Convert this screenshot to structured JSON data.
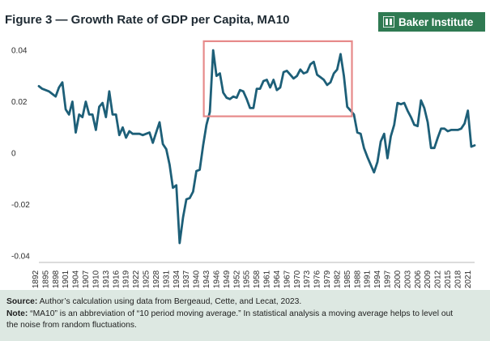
{
  "header": {
    "title": "Figure 3 — Growth Rate of GDP per Capita, MA10",
    "logo_text": "Baker Institute",
    "logo_color": "#2f7a52"
  },
  "chart_data": {
    "type": "line",
    "title": "Figure 3 — Growth Rate of GDP per Capita, MA10",
    "xlabel": "",
    "ylabel": "",
    "ylim": [
      -0.04,
      0.04
    ],
    "xlim": [
      1892,
      2022
    ],
    "grid": false,
    "line_color": "#1d5f78",
    "highlight_color": "#e78a8a",
    "y_ticks": [
      {
        "value": 0.04,
        "label": "0.04"
      },
      {
        "value": 0.02,
        "label": "0.02"
      },
      {
        "value": 0,
        "label": "0"
      },
      {
        "value": -0.02,
        "label": "-0.02"
      },
      {
        "value": -0.04,
        "label": "-0.04"
      }
    ],
    "x_ticks": [
      "1892",
      "1895",
      "1898",
      "1901",
      "1904",
      "1907",
      "1910",
      "1913",
      "1916",
      "1919",
      "1922",
      "1925",
      "1928",
      "1931",
      "1934",
      "1937",
      "1940",
      "1943",
      "1946",
      "1949",
      "1952",
      "1955",
      "1958",
      "1961",
      "1964",
      "1967",
      "1970",
      "1973",
      "1976",
      "1979",
      "1982",
      "1985",
      "1988",
      "1991",
      "1994",
      "1997",
      "2000",
      "2003",
      "2006",
      "2009",
      "2012",
      "2015",
      "2018",
      "2021"
    ],
    "highlight_box": {
      "x_start": 1941.2,
      "x_end": 1985.4,
      "y_start": 0.0435,
      "y_end": 0.0143
    },
    "series": [
      {
        "name": "Growth Rate of GDP per Capita, MA10",
        "x": [
          1892,
          1893,
          1894,
          1895,
          1896,
          1897,
          1898,
          1899,
          1900,
          1901,
          1902,
          1903,
          1904,
          1905,
          1906,
          1907,
          1908,
          1909,
          1910,
          1911,
          1912,
          1913,
          1914,
          1915,
          1916,
          1917,
          1918,
          1919,
          1920,
          1921,
          1922,
          1923,
          1924,
          1925,
          1926,
          1927,
          1928,
          1929,
          1930,
          1931,
          1932,
          1933,
          1934,
          1935,
          1936,
          1937,
          1938,
          1939,
          1940,
          1941,
          1942,
          1943,
          1944,
          1945,
          1946,
          1947,
          1948,
          1949,
          1950,
          1951,
          1952,
          1953,
          1954,
          1955,
          1956,
          1957,
          1958,
          1959,
          1960,
          1961,
          1962,
          1963,
          1964,
          1965,
          1966,
          1967,
          1968,
          1969,
          1970,
          1971,
          1972,
          1973,
          1974,
          1975,
          1976,
          1977,
          1978,
          1979,
          1980,
          1981,
          1982,
          1983,
          1984,
          1985,
          1986,
          1987,
          1988,
          1989,
          1990,
          1991,
          1992,
          1993,
          1994,
          1995,
          1996,
          1997,
          1998,
          1999,
          2000,
          2001,
          2002,
          2003,
          2004,
          2005,
          2006,
          2007,
          2008,
          2009,
          2010,
          2011,
          2012,
          2013,
          2014,
          2015,
          2016,
          2017,
          2018,
          2019,
          2020,
          2021,
          2022
        ],
        "values": [
          0.026,
          0.025,
          0.0245,
          0.024,
          0.023,
          0.022,
          0.0255,
          0.0275,
          0.017,
          0.015,
          0.02,
          0.008,
          0.015,
          0.014,
          0.02,
          0.015,
          0.015,
          0.009,
          0.018,
          0.0195,
          0.014,
          0.024,
          0.015,
          0.015,
          0.007,
          0.01,
          0.006,
          0.0085,
          0.0075,
          0.0075,
          0.0075,
          0.007,
          0.0075,
          0.008,
          0.004,
          0.008,
          0.012,
          0.0035,
          0.0015,
          -0.0045,
          -0.0135,
          -0.0125,
          -0.035,
          -0.025,
          -0.018,
          -0.0175,
          -0.015,
          -0.007,
          -0.0065,
          0.003,
          0.011,
          0.016,
          0.04,
          0.03,
          0.031,
          0.0235,
          0.0215,
          0.021,
          0.022,
          0.0215,
          0.0245,
          0.024,
          0.021,
          0.0175,
          0.0175,
          0.025,
          0.025,
          0.028,
          0.0285,
          0.0255,
          0.0285,
          0.0245,
          0.0255,
          0.0315,
          0.032,
          0.0305,
          0.029,
          0.03,
          0.0325,
          0.031,
          0.0315,
          0.0345,
          0.0355,
          0.0305,
          0.0295,
          0.0285,
          0.0265,
          0.0275,
          0.031,
          0.0325,
          0.0385,
          0.03,
          0.018,
          0.0165,
          0.015,
          0.008,
          0.0075,
          0.002,
          -0.0015,
          -0.0045,
          -0.0075,
          -0.0035,
          0.0045,
          0.0075,
          -0.002,
          0.0065,
          0.011,
          0.0195,
          0.019,
          0.0195,
          0.0165,
          0.014,
          0.011,
          0.0105,
          0.0205,
          0.0175,
          0.012,
          0.002,
          0.002,
          0.006,
          0.0095,
          0.0095,
          0.0085,
          0.009,
          0.009,
          0.009,
          0.0095,
          0.0115,
          0.0165,
          0.0025,
          0.003
        ]
      }
    ]
  },
  "note_box": {
    "source_label": "Source:",
    "source_text": " Author’s calculation using data from Bergeaud, Cette, and Lecat, 2023.",
    "note_label": "Note:",
    "note_line1": " “MA10” is an abbreviation of “10 period moving average.” In statistical analysis a moving average helps to level out",
    "note_line2": "the noise from random fluctuations."
  }
}
